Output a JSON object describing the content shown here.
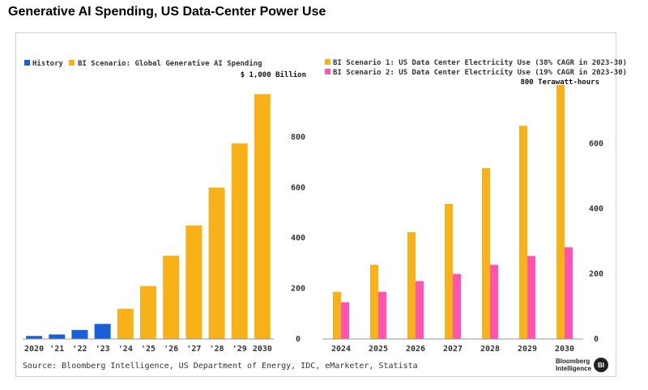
{
  "page_title": "Generative AI Spending, US Data-Center Power Use",
  "source": "Source: Bloomberg Intelligence, US Department of Energy, IDC, eMarketer, Statista",
  "logo": {
    "line1": "Bloomberg",
    "line2": "Intelligence",
    "mark": "BI"
  },
  "colors": {
    "history": "#1a5fd6",
    "scenario": "#f9b11a",
    "scenario2": "#ff55b0",
    "axis": "#999999"
  },
  "chart_data": [
    {
      "type": "bar",
      "title": "Global Generative AI Spending",
      "unit_label": "$ 1,000 Billion",
      "categories": [
        "2020",
        "'21",
        "'22",
        "'23",
        "'24",
        "'25",
        "'26",
        "'27",
        "'28",
        "'29",
        "2030"
      ],
      "values": [
        12,
        18,
        36,
        60,
        120,
        210,
        330,
        450,
        600,
        775,
        970
      ],
      "series_by_point": [
        "History",
        "History",
        "History",
        "History",
        "BI Scenario",
        "BI Scenario",
        "BI Scenario",
        "BI Scenario",
        "BI Scenario",
        "BI Scenario",
        "BI Scenario"
      ],
      "legend": [
        "History",
        "BI Scenario: Global Generative AI Spending"
      ],
      "yticks": [
        0,
        200,
        400,
        600,
        800
      ],
      "ylim": [
        0,
        1000
      ],
      "y_axis_side": "right"
    },
    {
      "type": "bar",
      "title": "US Data Center Electricity Use",
      "unit_label": "800 Terawatt-hours",
      "categories": [
        "2024",
        "2025",
        "2026",
        "2027",
        "2028",
        "2029",
        "2030"
      ],
      "series": [
        {
          "name": "BI Scenario 1: US Data Center Electricity Use (38% CAGR in 2023-30)",
          "values": [
            145,
            228,
            328,
            415,
            525,
            655,
            780
          ]
        },
        {
          "name": "BI Scenario 2: US Data Center Electricity Use (19% CAGR in 2023-30)",
          "values": [
            113,
            145,
            178,
            200,
            228,
            255,
            282
          ]
        }
      ],
      "yticks": [
        0,
        200,
        400,
        600
      ],
      "ylim": [
        0,
        800
      ],
      "y_axis_side": "right"
    }
  ]
}
